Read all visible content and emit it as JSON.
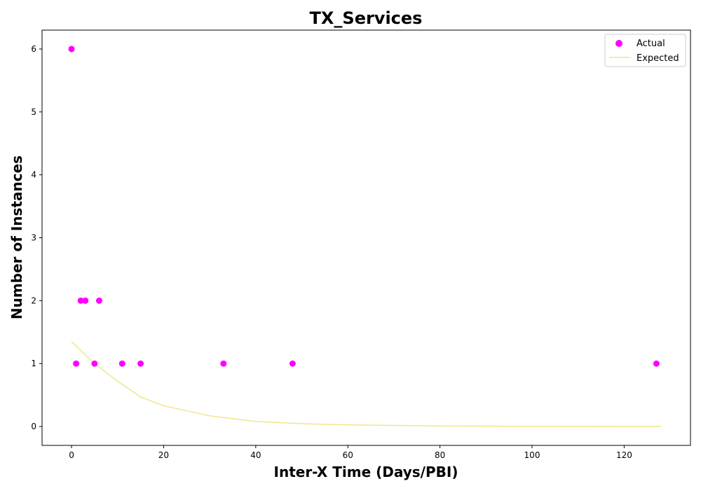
{
  "chart_data": {
    "type": "scatter",
    "title": "TX_Services",
    "xlabel": "Inter-X Time (Days/PBI)",
    "ylabel": "Number of Instances",
    "xlim": [
      -6.4,
      134.4
    ],
    "ylim": [
      -0.3,
      6.3
    ],
    "xticks": [
      0,
      20,
      40,
      60,
      80,
      100,
      120
    ],
    "yticks": [
      0,
      1,
      2,
      3,
      4,
      5,
      6
    ],
    "grid": false,
    "legend_position": "top-right",
    "series": [
      {
        "name": "Actual",
        "kind": "scatter",
        "color": "#ff00ff",
        "points": [
          {
            "x": 0,
            "y": 6
          },
          {
            "x": 1,
            "y": 1
          },
          {
            "x": 2,
            "y": 2
          },
          {
            "x": 3,
            "y": 2
          },
          {
            "x": 5,
            "y": 1
          },
          {
            "x": 6,
            "y": 2
          },
          {
            "x": 11,
            "y": 1
          },
          {
            "x": 15,
            "y": 1
          },
          {
            "x": 33,
            "y": 1
          },
          {
            "x": 48,
            "y": 1
          },
          {
            "x": 127,
            "y": 1
          }
        ]
      },
      {
        "name": "Expected",
        "kind": "line",
        "color": "#f0e68c",
        "points": [
          {
            "x": 0,
            "y": 1.35
          },
          {
            "x": 5,
            "y": 1.0
          },
          {
            "x": 10,
            "y": 0.72
          },
          {
            "x": 15,
            "y": 0.47
          },
          {
            "x": 20,
            "y": 0.33
          },
          {
            "x": 30,
            "y": 0.17
          },
          {
            "x": 40,
            "y": 0.08
          },
          {
            "x": 50,
            "y": 0.045
          },
          {
            "x": 60,
            "y": 0.025
          },
          {
            "x": 80,
            "y": 0.008
          },
          {
            "x": 100,
            "y": 0.003
          },
          {
            "x": 128,
            "y": 0.001
          }
        ]
      }
    ]
  }
}
